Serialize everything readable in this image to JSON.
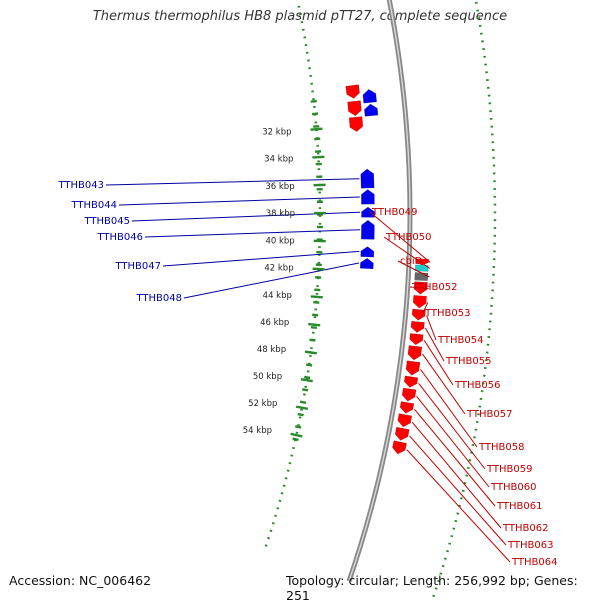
{
  "title": "Thermus thermophilus HB8 plasmid pTT27, complete sequence",
  "accession_text": "Accession: NC_006462",
  "summary_text": "Topology: circular; Length: 256,992 bp; Genes: 251",
  "colors": {
    "forward_gene": "#ff0000",
    "reverse_gene": "#0000ee",
    "rna_gene": "#22cccc",
    "other_feature": "#666666",
    "backbone": "#888888",
    "gc_dots": "#2a8a2a",
    "forward_label": "#c00000",
    "reverse_label": "#0000a0"
  },
  "scale_ticks": [
    {
      "kbp": 32,
      "label": "32 kbp"
    },
    {
      "kbp": 34,
      "label": "34 kbp"
    },
    {
      "kbp": 36,
      "label": "36 kbp"
    },
    {
      "kbp": 38,
      "label": "38 kbp"
    },
    {
      "kbp": 40,
      "label": "40 kbp"
    },
    {
      "kbp": 42,
      "label": "42 kbp"
    },
    {
      "kbp": 44,
      "label": "44 kbp"
    },
    {
      "kbp": 46,
      "label": "46 kbp"
    },
    {
      "kbp": 48,
      "label": "48 kbp"
    },
    {
      "kbp": 50,
      "label": "50 kbp"
    },
    {
      "kbp": 52,
      "label": "52 kbp"
    },
    {
      "kbp": 54,
      "label": "54 kbp"
    }
  ],
  "genes": [
    {
      "name": "TTHB043",
      "strand": "reverse",
      "start_kbp": 35.0,
      "end_kbp": 36.3,
      "type": "cds"
    },
    {
      "name": "TTHB044",
      "strand": "reverse",
      "start_kbp": 36.4,
      "end_kbp": 37.4,
      "type": "cds"
    },
    {
      "name": "TTHB045",
      "strand": "reverse",
      "start_kbp": 37.6,
      "end_kbp": 38.3,
      "type": "cds"
    },
    {
      "name": "TTHB046",
      "strand": "reverse",
      "start_kbp": 38.5,
      "end_kbp": 39.8,
      "type": "cds"
    },
    {
      "name": "TTHB047",
      "strand": "reverse",
      "start_kbp": 40.3,
      "end_kbp": 41.0,
      "type": "cds"
    },
    {
      "name": "TTHB048",
      "strand": "reverse",
      "start_kbp": 41.1,
      "end_kbp": 41.8,
      "type": "cds"
    },
    {
      "name": "TTHB049",
      "strand": "forward",
      "start_kbp": 41.0,
      "end_kbp": 41.4,
      "type": "cds"
    },
    {
      "name": "TTHB050",
      "strand": "forward",
      "start_kbp": 41.4,
      "end_kbp": 41.8,
      "type": "rna"
    },
    {
      "name": "cbiD",
      "strand": "forward",
      "start_kbp": 41.9,
      "end_kbp": 42.4,
      "type": "other"
    },
    {
      "name": "TTHB052",
      "strand": "forward",
      "start_kbp": 42.5,
      "end_kbp": 43.3,
      "type": "cds"
    },
    {
      "name": "TTHB053",
      "strand": "forward",
      "start_kbp": 43.4,
      "end_kbp": 44.2,
      "type": "cds"
    },
    {
      "name": "TTHB054",
      "strand": "forward",
      "start_kbp": 44.3,
      "end_kbp": 45.0,
      "type": "cds"
    },
    {
      "name": "TTHB055",
      "strand": "forward",
      "start_kbp": 45.1,
      "end_kbp": 45.8,
      "type": "cds"
    },
    {
      "name": "TTHB056",
      "strand": "forward",
      "start_kbp": 45.9,
      "end_kbp": 46.6,
      "type": "cds"
    },
    {
      "name": "TTHB057",
      "strand": "forward",
      "start_kbp": 46.7,
      "end_kbp": 47.6,
      "type": "cds"
    },
    {
      "name": "TTHB058",
      "strand": "forward",
      "start_kbp": 47.7,
      "end_kbp": 48.6,
      "type": "cds"
    },
    {
      "name": "TTHB059",
      "strand": "forward",
      "start_kbp": 48.7,
      "end_kbp": 49.4,
      "type": "cds"
    },
    {
      "name": "TTHB060",
      "strand": "forward",
      "start_kbp": 49.5,
      "end_kbp": 50.3,
      "type": "cds"
    },
    {
      "name": "TTHB061",
      "strand": "forward",
      "start_kbp": 50.4,
      "end_kbp": 51.1,
      "type": "cds"
    },
    {
      "name": "TTHB062",
      "strand": "forward",
      "start_kbp": 51.2,
      "end_kbp": 52.0,
      "type": "cds"
    },
    {
      "name": "TTHB063",
      "strand": "forward",
      "start_kbp": 52.1,
      "end_kbp": 52.9,
      "type": "cds"
    },
    {
      "name": "TTHB064",
      "strand": "forward",
      "start_kbp": 53.0,
      "end_kbp": 53.8,
      "type": "cds"
    }
  ]
}
